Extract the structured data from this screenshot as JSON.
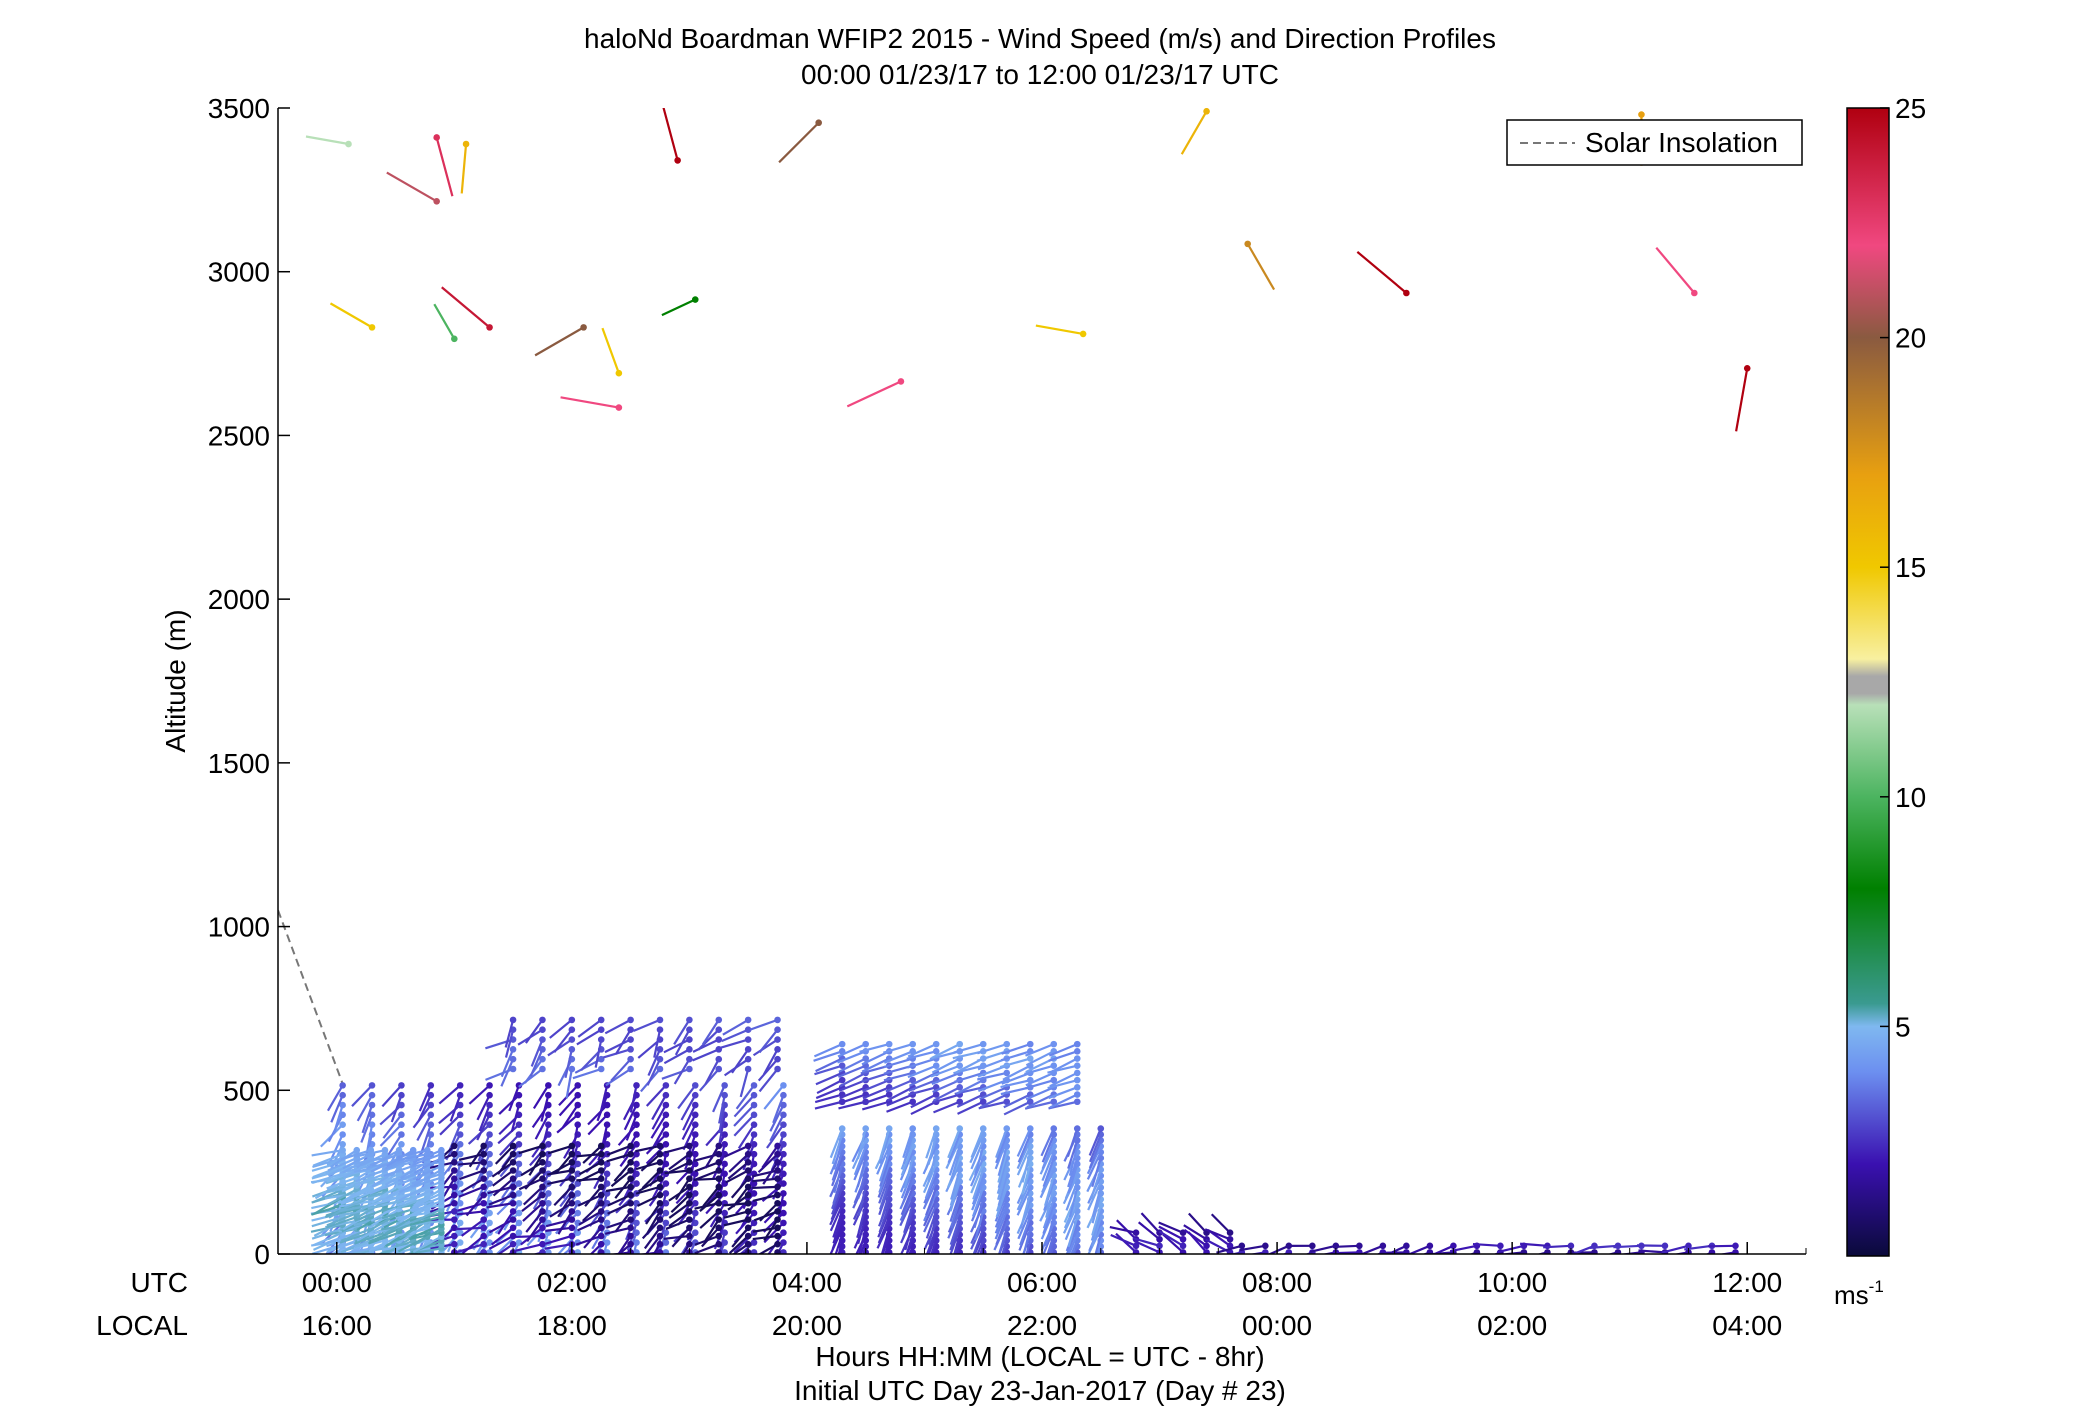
{
  "chart_data": {
    "type": "wind-barb-profile",
    "title": "haloNd Boardman WFIP2 2015 - Wind Speed (m/s) and Direction Profiles",
    "subtitle": "00:00 01/23/17 to 12:00 01/23/17  UTC",
    "ylabel": "Altitude (m)",
    "xlabel": "Hours HH:MM  (LOCAL = UTC - 8hr)",
    "xlabel2": "Initial UTC Day 23-Jan-2017 (Day # 23)",
    "utc_label": "UTC",
    "local_label": "LOCAL",
    "xlim_hours": [
      -0.5,
      12.5
    ],
    "ylim": [
      0,
      3500
    ],
    "yticks": [
      "0",
      "500",
      "1000",
      "1500",
      "2000",
      "2500",
      "3000",
      "3500"
    ],
    "utc_ticks": [
      "00:00",
      "02:00",
      "04:00",
      "06:00",
      "08:00",
      "10:00",
      "12:00"
    ],
    "local_ticks": [
      "16:00",
      "18:00",
      "20:00",
      "22:00",
      "00:00",
      "02:00",
      "04:00"
    ],
    "legend": {
      "position": "top-right",
      "entries": [
        {
          "label": "Solar Insolation",
          "style": "dashed",
          "color": "#777777"
        }
      ]
    },
    "solar_insolation": [
      [
        -0.5,
        1050
      ],
      [
        0.05,
        520
      ]
    ],
    "colorbar": {
      "min": 0,
      "max": 25,
      "ticks": [
        "5",
        "10",
        "15",
        "20",
        "25"
      ],
      "unit": "ms",
      "unit_exp": "-1",
      "stops": [
        {
          "value": 0,
          "color": "#0a0a3a"
        },
        {
          "value": 2,
          "color": "#3a10b0"
        },
        {
          "value": 4,
          "color": "#6c8ff0"
        },
        {
          "value": 5,
          "color": "#7fb8f0"
        },
        {
          "value": 5.5,
          "color": "#3a9a90"
        },
        {
          "value": 7,
          "color": "#1a8a3a"
        },
        {
          "value": 8,
          "color": "#008000"
        },
        {
          "value": 10,
          "color": "#4cb460"
        },
        {
          "value": 12,
          "color": "#b8e0b8"
        },
        {
          "value": 12.5,
          "color": "#a8a8a8"
        },
        {
          "value": 13,
          "color": "#f8f0a0"
        },
        {
          "value": 15,
          "color": "#f0c800"
        },
        {
          "value": 17,
          "color": "#e8a010"
        },
        {
          "value": 20,
          "color": "#8a5a40"
        },
        {
          "value": 22,
          "color": "#f04880"
        },
        {
          "value": 25,
          "color": "#b00010"
        }
      ]
    },
    "profile_groups": [
      {
        "t_start": 0.05,
        "t_end": 3.8,
        "dt": 0.25,
        "z_top": 520,
        "z_step": 30,
        "speed_low": 2.0,
        "speed_high": 4.8,
        "dir": 210,
        "dir_spread": 40
      },
      {
        "t_start": 1.0,
        "t_end": 3.8,
        "dt": 0.25,
        "z_top": 350,
        "z_step": 25,
        "speed_low": 0.5,
        "speed_high": 2.5,
        "dir": 240,
        "dir_spread": 60
      },
      {
        "t_start": 0.05,
        "t_end": 1.0,
        "dt": 0.12,
        "z_top": 320,
        "z_step": 12,
        "speed_low": 4.0,
        "speed_high": 5.4,
        "dir": 250,
        "dir_spread": 25
      },
      {
        "t_start": 1.5,
        "t_end": 3.8,
        "dt": 0.25,
        "z_top": 720,
        "z_bottom": 560,
        "z_step": 30,
        "speed_low": 2.8,
        "speed_high": 3.8,
        "dir": 225,
        "dir_spread": 70
      },
      {
        "t_start": 4.3,
        "t_end": 6.4,
        "dt": 0.2,
        "z_top": 660,
        "z_bottom": 460,
        "z_step": 22,
        "speed_low": 2.5,
        "speed_high": 4.6,
        "dir": 250,
        "dir_spread": 15
      },
      {
        "t_start": 4.3,
        "t_end": 6.6,
        "dt": 0.2,
        "z_top": 390,
        "z_step": 18,
        "speed_low": 2.2,
        "speed_high": 4.8,
        "dir": 200,
        "dir_spread": 12
      },
      {
        "t_start": 6.8,
        "t_end": 7.6,
        "dt": 0.2,
        "z_top": 80,
        "z_step": 20,
        "speed_low": 1.0,
        "speed_high": 2.4,
        "dir": 300,
        "dir_spread": 40
      },
      {
        "t_start": 7.7,
        "t_end": 12.0,
        "dt": 0.2,
        "z_top": 25,
        "z_step": 20,
        "speed_low": 1.4,
        "speed_high": 2.6,
        "dir": 260,
        "dir_spread": 30
      }
    ],
    "upper_points": [
      {
        "t": 0.1,
        "z": 3390,
        "speed": 12,
        "dir": 280
      },
      {
        "t": 0.85,
        "z": 3410,
        "speed": 23,
        "dir": 165
      },
      {
        "t": 1.1,
        "z": 3390,
        "speed": 16,
        "dir": 185
      },
      {
        "t": 0.85,
        "z": 3215,
        "speed": 21,
        "dir": 300
      },
      {
        "t": 2.9,
        "z": 3340,
        "speed": 25,
        "dir": 345
      },
      {
        "t": 4.1,
        "z": 3455,
        "speed": 20,
        "dir": 225
      },
      {
        "t": 7.4,
        "z": 3490,
        "speed": 16,
        "dir": 210
      },
      {
        "t": 11.1,
        "z": 3480,
        "speed": 17,
        "dir": 180
      },
      {
        "t": 0.3,
        "z": 2830,
        "speed": 15,
        "dir": 300
      },
      {
        "t": 1.0,
        "z": 2795,
        "speed": 10,
        "dir": 330
      },
      {
        "t": 1.3,
        "z": 2830,
        "speed": 24,
        "dir": 310
      },
      {
        "t": 2.1,
        "z": 2830,
        "speed": 20,
        "dir": 240
      },
      {
        "t": 2.4,
        "z": 2690,
        "speed": 15,
        "dir": 340
      },
      {
        "t": 2.4,
        "z": 2585,
        "speed": 22,
        "dir": 280
      },
      {
        "t": 3.05,
        "z": 2915,
        "speed": 8,
        "dir": 245
      },
      {
        "t": 4.8,
        "z": 2665,
        "speed": 22,
        "dir": 245
      },
      {
        "t": 6.35,
        "z": 2810,
        "speed": 15,
        "dir": 280
      },
      {
        "t": 7.75,
        "z": 3085,
        "speed": 18,
        "dir": 150
      },
      {
        "t": 9.1,
        "z": 2935,
        "speed": 25,
        "dir": 310
      },
      {
        "t": 11.55,
        "z": 2935,
        "speed": 22,
        "dir": 320
      },
      {
        "t": 12.0,
        "z": 2705,
        "speed": 25,
        "dir": 190
      }
    ]
  }
}
